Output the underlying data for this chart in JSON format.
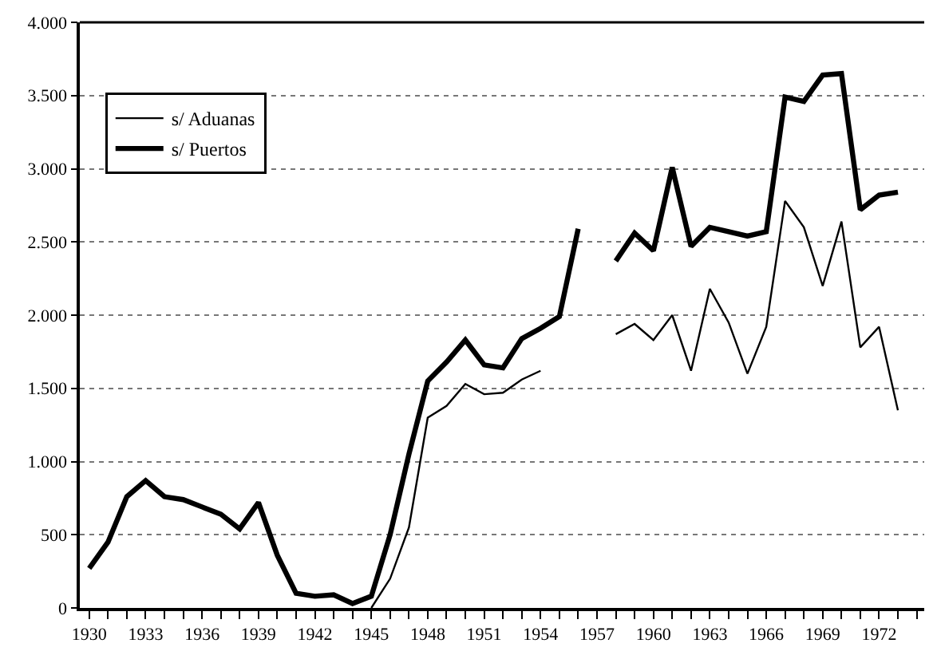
{
  "chart_data": {
    "type": "line",
    "x": [
      1930,
      1931,
      1932,
      1933,
      1934,
      1935,
      1936,
      1937,
      1938,
      1939,
      1940,
      1941,
      1942,
      1943,
      1944,
      1945,
      1946,
      1947,
      1948,
      1949,
      1950,
      1951,
      1952,
      1953,
      1954,
      1955,
      1956,
      1957,
      1958,
      1959,
      1960,
      1961,
      1962,
      1963,
      1964,
      1965,
      1966,
      1967,
      1968,
      1969,
      1970,
      1971,
      1972,
      1973
    ],
    "series": [
      {
        "name": "s/ Aduanas",
        "color": "#000000",
        "values": [
          null,
          null,
          null,
          null,
          null,
          null,
          null,
          null,
          null,
          null,
          null,
          null,
          null,
          null,
          null,
          0,
          200,
          550,
          1300,
          1380,
          1530,
          1460,
          1470,
          1560,
          1620,
          null,
          null,
          null,
          1870,
          1940,
          1830,
          2000,
          1620,
          2180,
          1950,
          1600,
          1920,
          2780,
          2600,
          2200,
          2640,
          1780,
          1920,
          1350
        ]
      },
      {
        "name": "s/ Puertos",
        "color": "#000000",
        "values": [
          270,
          450,
          760,
          870,
          760,
          740,
          690,
          640,
          540,
          720,
          360,
          100,
          80,
          90,
          30,
          80,
          500,
          1050,
          1550,
          1680,
          1830,
          1660,
          1640,
          1840,
          1910,
          1990,
          2590,
          null,
          2370,
          2560,
          2440,
          3010,
          2470,
          2600,
          2570,
          2540,
          2570,
          3490,
          3460,
          3640,
          3650,
          2720,
          2820,
          2840
        ]
      }
    ],
    "xlim": [
      1929.5,
      1974.4
    ],
    "xticks": [
      1930,
      {
        "value": 1931,
        "label": null
      },
      {
        "value": 1932,
        "label": null
      },
      1933,
      {
        "value": 1934,
        "label": null
      },
      {
        "value": 1935,
        "label": null
      },
      1936,
      {
        "value": 1937,
        "label": null
      },
      {
        "value": 1938,
        "label": null
      },
      1939,
      {
        "value": 1940,
        "label": null
      },
      {
        "value": 1941,
        "label": null
      },
      1942,
      {
        "value": 1943,
        "label": null
      },
      {
        "value": 1944,
        "label": null
      },
      1945,
      {
        "value": 1946,
        "label": null
      },
      {
        "value": 1947,
        "label": null
      },
      1948,
      {
        "value": 1949,
        "label": null
      },
      {
        "value": 1950,
        "label": null
      },
      1951,
      {
        "value": 1952,
        "label": null
      },
      {
        "value": 1953,
        "label": null
      },
      1954,
      {
        "value": 1955,
        "label": null
      },
      {
        "value": 1956,
        "label": null
      },
      1957,
      {
        "value": 1958,
        "label": null
      },
      {
        "value": 1959,
        "label": null
      },
      1960,
      {
        "value": 1961,
        "label": null
      },
      {
        "value": 1962,
        "label": null
      },
      1963,
      {
        "value": 1964,
        "label": null
      },
      {
        "value": 1965,
        "label": null
      },
      1966,
      {
        "value": 1967,
        "label": null
      },
      {
        "value": 1968,
        "label": null
      },
      1969,
      {
        "value": 1970,
        "label": null
      },
      {
        "value": 1971,
        "label": null
      },
      1972,
      {
        "value": 1973,
        "label": null
      },
      {
        "value": 1974,
        "label": null
      }
    ],
    "ylim": [
      0,
      4000
    ],
    "yticks": [
      0,
      {
        "value": 500,
        "label": "500"
      },
      {
        "value": 1000,
        "label": "1.000"
      },
      {
        "value": 1500,
        "label": "1.500"
      },
      {
        "value": 2000,
        "label": "2.000"
      },
      {
        "value": 2500,
        "label": "2.500"
      },
      {
        "value": 3000,
        "label": "3.000"
      },
      {
        "value": 3500,
        "label": "3.500"
      },
      {
        "value": 4000,
        "label": "4.000"
      }
    ],
    "grid": "y",
    "legend": "top left",
    "line_style": "solid",
    "marker": "none"
  }
}
